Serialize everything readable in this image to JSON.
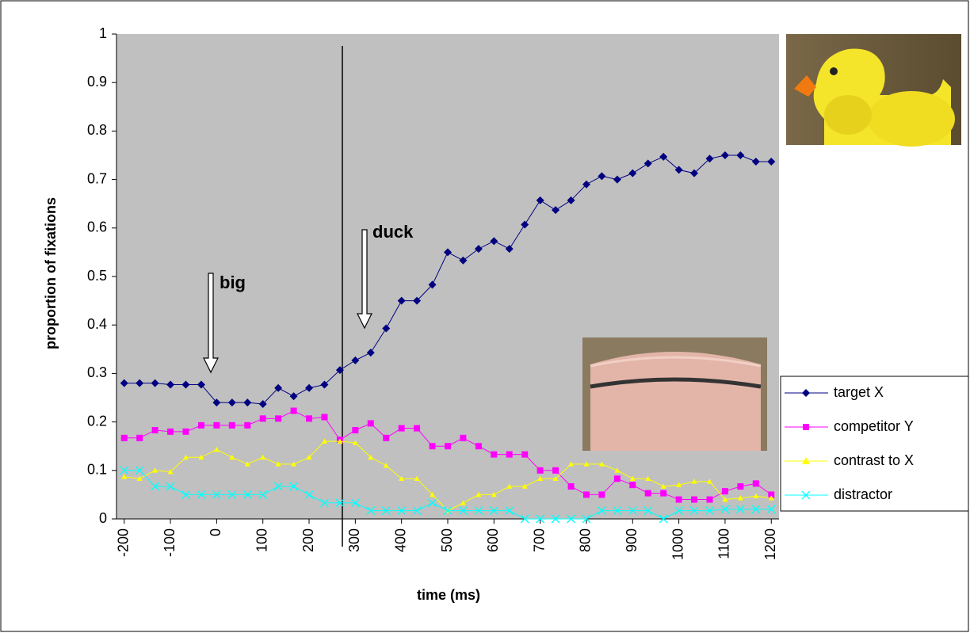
{
  "chart_data": {
    "type": "line",
    "x_label": "time (ms)",
    "y_label": "proportion of fixations",
    "annotations": [
      "big",
      "duck"
    ],
    "x": [
      -200,
      -166.7,
      -133.3,
      -100,
      -66.7,
      -33.3,
      0,
      33.3,
      66.7,
      100,
      133.3,
      166.7,
      200,
      233.3,
      266.7,
      300,
      333.3,
      366.7,
      400,
      433.3,
      466.7,
      500,
      533.3,
      566.7,
      600,
      633.3,
      666.7,
      700,
      733.3,
      766.7,
      800,
      833.3,
      866.7,
      900,
      933.3,
      966.7,
      1000,
      1033.3,
      1066.7,
      1100,
      1133.3,
      1166.7,
      1200
    ],
    "xlim": [
      -216.7,
      1216.7
    ],
    "xticks": [
      -200,
      -100,
      0,
      100,
      200,
      300,
      400,
      500,
      600,
      700,
      800,
      900,
      1000,
      1100,
      1200
    ],
    "ylim": [
      0,
      1
    ],
    "yticks": [
      0,
      0.1,
      0.2,
      0.3,
      0.4,
      0.5,
      0.6,
      0.7,
      0.8,
      0.9,
      1
    ],
    "series": [
      {
        "name": "target X",
        "color": "#000080",
        "marker": "diamond",
        "values": [
          0.28,
          0.28,
          0.28,
          0.277,
          0.277,
          0.277,
          0.24,
          0.24,
          0.24,
          0.237,
          0.27,
          0.253,
          0.27,
          0.277,
          0.307,
          0.327,
          0.343,
          0.393,
          0.45,
          0.45,
          0.483,
          0.55,
          0.533,
          0.557,
          0.573,
          0.557,
          0.607,
          0.657,
          0.637,
          0.657,
          0.69,
          0.707,
          0.7,
          0.713,
          0.733,
          0.747,
          0.72,
          0.713,
          0.743,
          0.75,
          0.75,
          0.737,
          0.737
        ]
      },
      {
        "name": "competitor Y",
        "color": "#ff00ff",
        "marker": "square",
        "values": [
          0.167,
          0.167,
          0.183,
          0.18,
          0.18,
          0.193,
          0.193,
          0.193,
          0.193,
          0.207,
          0.207,
          0.223,
          0.207,
          0.21,
          0.163,
          0.183,
          0.197,
          0.167,
          0.187,
          0.187,
          0.15,
          0.15,
          0.167,
          0.15,
          0.133,
          0.133,
          0.133,
          0.1,
          0.1,
          0.067,
          0.05,
          0.05,
          0.083,
          0.07,
          0.053,
          0.053,
          0.04,
          0.04,
          0.04,
          0.057,
          0.067,
          0.073,
          0.05
        ]
      },
      {
        "name": "contrast to X",
        "color": "#ffff00",
        "marker": "triangle",
        "values": [
          0.087,
          0.083,
          0.1,
          0.097,
          0.127,
          0.127,
          0.143,
          0.127,
          0.113,
          0.127,
          0.113,
          0.113,
          0.127,
          0.16,
          0.16,
          0.157,
          0.127,
          0.11,
          0.083,
          0.083,
          0.05,
          0.017,
          0.033,
          0.05,
          0.05,
          0.067,
          0.067,
          0.083,
          0.083,
          0.113,
          0.113,
          0.113,
          0.1,
          0.083,
          0.083,
          0.067,
          0.07,
          0.077,
          0.077,
          0.04,
          0.043,
          0.047,
          0.043
        ]
      },
      {
        "name": "distractor",
        "color": "#00ffff",
        "marker": "x",
        "values": [
          0.1,
          0.1,
          0.067,
          0.067,
          0.05,
          0.05,
          0.05,
          0.05,
          0.05,
          0.05,
          0.067,
          0.067,
          0.05,
          0.033,
          0.033,
          0.033,
          0.017,
          0.017,
          0.017,
          0.017,
          0.033,
          0.017,
          0.017,
          0.017,
          0.017,
          0.017,
          0,
          0,
          0,
          0,
          0,
          0.017,
          0.017,
          0.017,
          0.017,
          0,
          0.017,
          0.017,
          0.017,
          0.02,
          0.02,
          0.02,
          0.02
        ]
      }
    ]
  }
}
